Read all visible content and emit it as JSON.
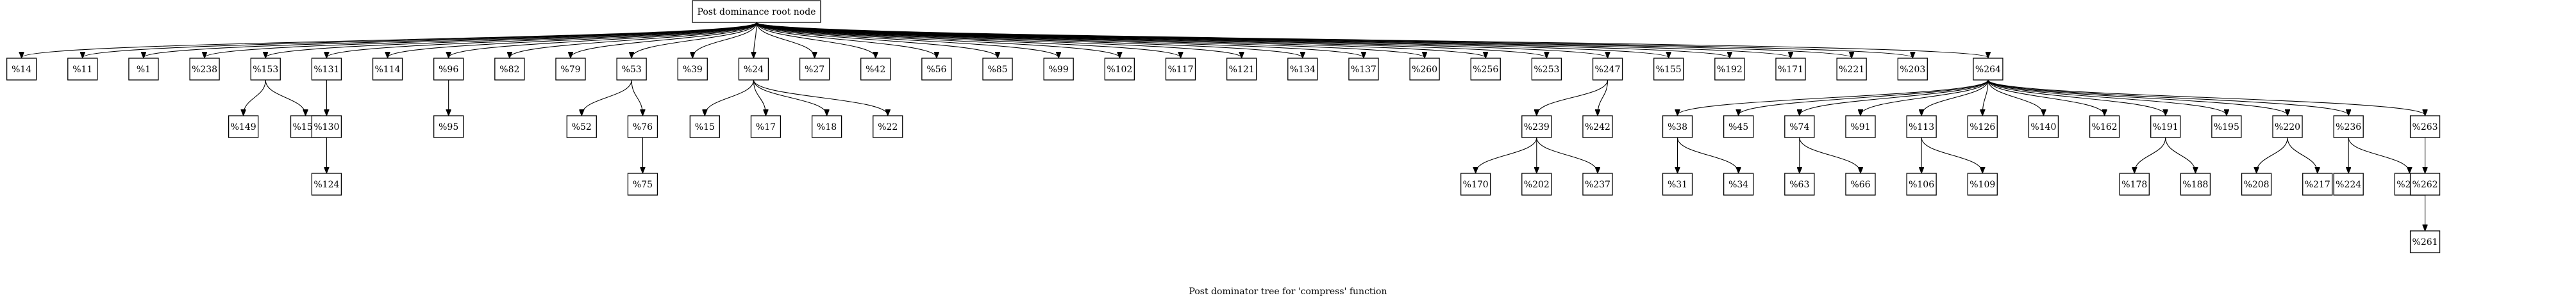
{
  "diagram": {
    "title": "Post dominator tree for 'compress' function",
    "root": "Post dominance root node",
    "edges": [
      [
        "Post dominance root node",
        "%14"
      ],
      [
        "Post dominance root node",
        "%11"
      ],
      [
        "Post dominance root node",
        "%1"
      ],
      [
        "Post dominance root node",
        "%238"
      ],
      [
        "Post dominance root node",
        "%153"
      ],
      [
        "Post dominance root node",
        "%131"
      ],
      [
        "Post dominance root node",
        "%114"
      ],
      [
        "Post dominance root node",
        "%96"
      ],
      [
        "Post dominance root node",
        "%82"
      ],
      [
        "Post dominance root node",
        "%79"
      ],
      [
        "Post dominance root node",
        "%53"
      ],
      [
        "Post dominance root node",
        "%39"
      ],
      [
        "Post dominance root node",
        "%24"
      ],
      [
        "Post dominance root node",
        "%27"
      ],
      [
        "Post dominance root node",
        "%42"
      ],
      [
        "Post dominance root node",
        "%56"
      ],
      [
        "Post dominance root node",
        "%85"
      ],
      [
        "Post dominance root node",
        "%99"
      ],
      [
        "Post dominance root node",
        "%102"
      ],
      [
        "Post dominance root node",
        "%117"
      ],
      [
        "Post dominance root node",
        "%121"
      ],
      [
        "Post dominance root node",
        "%134"
      ],
      [
        "Post dominance root node",
        "%137"
      ],
      [
        "Post dominance root node",
        "%260"
      ],
      [
        "Post dominance root node",
        "%256"
      ],
      [
        "Post dominance root node",
        "%253"
      ],
      [
        "Post dominance root node",
        "%247"
      ],
      [
        "Post dominance root node",
        "%155"
      ],
      [
        "Post dominance root node",
        "%192"
      ],
      [
        "Post dominance root node",
        "%171"
      ],
      [
        "Post dominance root node",
        "%221"
      ],
      [
        "Post dominance root node",
        "%203"
      ],
      [
        "Post dominance root node",
        "%264"
      ],
      [
        "%153",
        "%149"
      ],
      [
        "%153",
        "%152"
      ],
      [
        "%131",
        "%130"
      ],
      [
        "%130",
        "%124"
      ],
      [
        "%96",
        "%95"
      ],
      [
        "%53",
        "%52"
      ],
      [
        "%53",
        "%76"
      ],
      [
        "%76",
        "%75"
      ],
      [
        "%24",
        "%15"
      ],
      [
        "%24",
        "%17"
      ],
      [
        "%24",
        "%18"
      ],
      [
        "%24",
        "%22"
      ],
      [
        "%247",
        "%239"
      ],
      [
        "%247",
        "%242"
      ],
      [
        "%239",
        "%170"
      ],
      [
        "%239",
        "%202"
      ],
      [
        "%239",
        "%237"
      ],
      [
        "%264",
        "%38"
      ],
      [
        "%264",
        "%45"
      ],
      [
        "%264",
        "%74"
      ],
      [
        "%264",
        "%91"
      ],
      [
        "%264",
        "%113"
      ],
      [
        "%264",
        "%126"
      ],
      [
        "%264",
        "%140"
      ],
      [
        "%264",
        "%162"
      ],
      [
        "%264",
        "%191"
      ],
      [
        "%264",
        "%195"
      ],
      [
        "%264",
        "%220"
      ],
      [
        "%264",
        "%236"
      ],
      [
        "%264",
        "%263"
      ],
      [
        "%38",
        "%31"
      ],
      [
        "%38",
        "%34"
      ],
      [
        "%74",
        "%63"
      ],
      [
        "%74",
        "%66"
      ],
      [
        "%113",
        "%106"
      ],
      [
        "%113",
        "%109"
      ],
      [
        "%191",
        "%178"
      ],
      [
        "%191",
        "%188"
      ],
      [
        "%220",
        "%208"
      ],
      [
        "%220",
        "%217"
      ],
      [
        "%236",
        "%224"
      ],
      [
        "%236",
        "%233"
      ],
      [
        "%263",
        "%262"
      ],
      [
        "%262",
        "%261"
      ]
    ]
  }
}
